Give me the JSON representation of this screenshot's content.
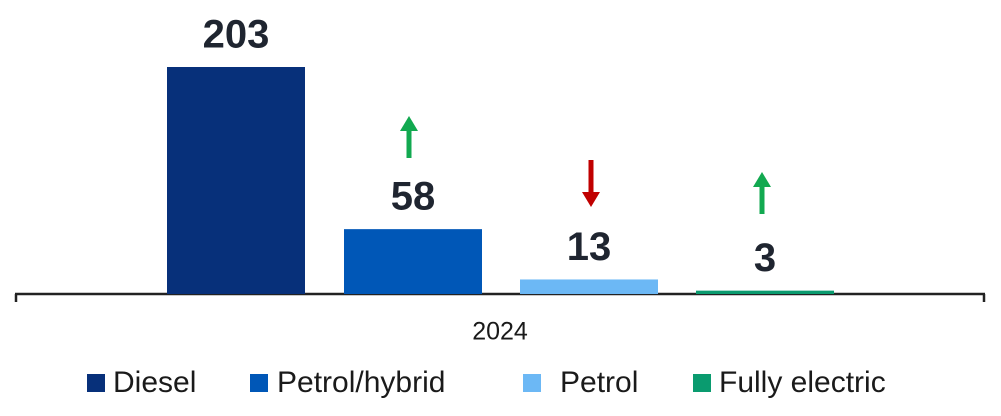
{
  "chart_data": {
    "type": "bar",
    "categories": [
      "2024"
    ],
    "series": [
      {
        "name": "Diesel",
        "color": "#07307a",
        "values": [
          203
        ]
      },
      {
        "name": "Petrol/hybrid",
        "color": "#0057b7",
        "values": [
          58
        ]
      },
      {
        "name": "Petrol",
        "color": "#6cb8f5",
        "values": [
          13
        ]
      },
      {
        "name": "Fully electric",
        "color": "#0a9b6f",
        "values": [
          3
        ]
      }
    ],
    "ylim": [
      0,
      210
    ]
  }
}
